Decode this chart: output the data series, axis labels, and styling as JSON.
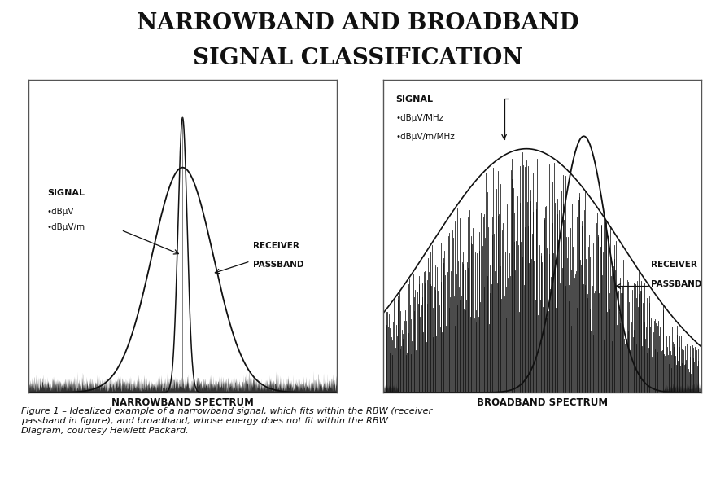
{
  "title_line1": "NARROWBAND AND BROADBAND",
  "title_line2": "SIGNAL CLASSIFICATION",
  "title_fontsize": 20,
  "left_label": "NARROWBAND SPECTRUM",
  "right_label": "BROADBAND SPECTRUM",
  "caption": "Figure 1 – Idealized example of a narrowband signal, which fits within the RBW (receiver\npassband in figure), and broadband, whose energy does not fit within the RBW.\nDiagram, courtesy Hewlett Packard.",
  "background_color": "#ffffff",
  "ink_color": "#111111"
}
